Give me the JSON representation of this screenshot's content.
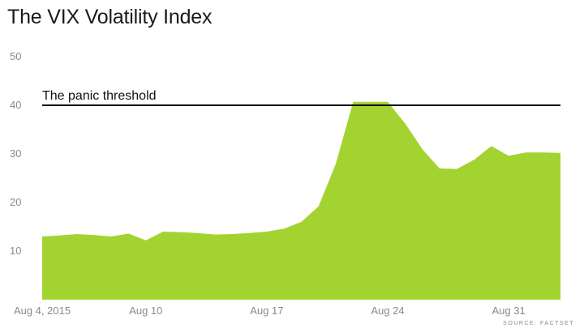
{
  "chart_data": {
    "type": "area",
    "title": "The VIX Volatility Index",
    "x": [
      "Aug 4, 2015",
      "Aug 5",
      "Aug 6",
      "Aug 7",
      "Aug 8",
      "Aug 9",
      "Aug 10",
      "Aug 11",
      "Aug 12",
      "Aug 13",
      "Aug 14",
      "Aug 15",
      "Aug 16",
      "Aug 17",
      "Aug 18",
      "Aug 19",
      "Aug 20",
      "Aug 21",
      "Aug 22",
      "Aug 23",
      "Aug 24",
      "Aug 25",
      "Aug 26",
      "Aug 27",
      "Aug 28",
      "Aug 29",
      "Aug 30",
      "Aug 31",
      "Sep 1",
      "Sep 2",
      "Sep 3"
    ],
    "series": [
      {
        "values": [
          13.0,
          13.2,
          13.5,
          13.3,
          13.0,
          13.6,
          12.2,
          14.0,
          13.9,
          13.7,
          13.4,
          13.5,
          13.7,
          14.0,
          14.6,
          16.0,
          19.2,
          28.0,
          40.7,
          40.7,
          40.7,
          36.3,
          31.0,
          27.0,
          26.9,
          28.8,
          31.6,
          29.6,
          30.3,
          30.3,
          30.2
        ],
        "color": "#a3d330"
      }
    ],
    "x_ticks": [
      {
        "label": "Aug 4, 2015",
        "index": 0
      },
      {
        "label": "Aug 10",
        "index": 6
      },
      {
        "label": "Aug 17",
        "index": 13
      },
      {
        "label": "Aug 24",
        "index": 20
      },
      {
        "label": "Aug 31",
        "index": 27
      }
    ],
    "y_ticks": [
      10,
      20,
      30,
      40,
      50
    ],
    "ylim": [
      0,
      50
    ],
    "grid": false,
    "annotations": [
      {
        "text": "The panic threshold",
        "value": 40
      }
    ],
    "source": "SOURCE: FACTSET",
    "colors": {
      "area": "#a3d330",
      "threshold": "#000000",
      "tick": "#8a8a8a"
    }
  }
}
